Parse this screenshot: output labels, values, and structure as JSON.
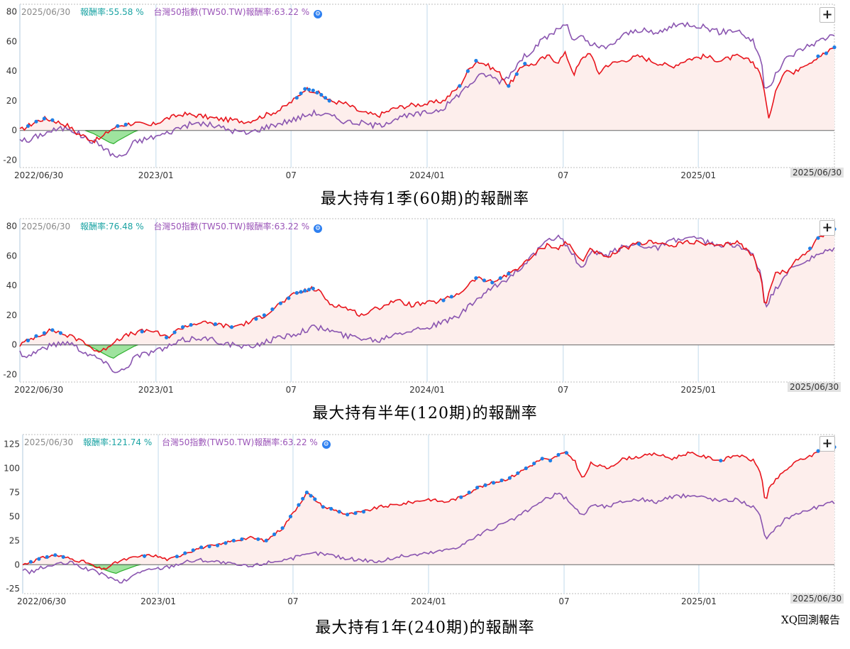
{
  "colors": {
    "strategy_line": "#e8141c",
    "benchmark_line": "#8a55b0",
    "new_high_dots": "#1f7fe6",
    "drawdown_fill": "#9ee39e",
    "drawdown_line": "#2db02d",
    "area_fill": "#fdeeec",
    "grid_vertical": "#d6e6f2",
    "zero_line": "#666666"
  },
  "icons": {
    "settings": "gear-dot-icon",
    "zoom": "plus-icon"
  },
  "watermark": "XQ回測報告",
  "chart_data": [
    {
      "type": "line",
      "header": {
        "date": "2025/06/30",
        "strategy_label": "報酬率:",
        "strategy_value": "55.58 %",
        "benchmark_label": "台灣50指數(TW50.TW)報酬率:",
        "benchmark_value": "63.22 %"
      },
      "caption": "最大持有1季(60期)的報酬率",
      "zoom_label": "+",
      "end_date": "2025/06/30",
      "ylim": [
        -25,
        85
      ],
      "yticks": [
        -20,
        0,
        20,
        40,
        60,
        80
      ],
      "x_tick_labels": [
        "2022/06/30",
        "2023/01",
        "07",
        "2024/01",
        "07",
        "2025/01"
      ],
      "x_tick_pos": [
        0,
        0.167,
        0.333,
        0.5,
        0.667,
        0.833
      ],
      "series": [
        {
          "role": "strategy",
          "x": [
            0,
            0.01,
            0.02,
            0.03,
            0.04,
            0.05,
            0.06,
            0.07,
            0.08,
            0.09,
            0.1,
            0.11,
            0.12,
            0.13,
            0.14,
            0.16,
            0.18,
            0.2,
            0.22,
            0.24,
            0.26,
            0.28,
            0.3,
            0.32,
            0.33,
            0.34,
            0.35,
            0.36,
            0.37,
            0.38,
            0.4,
            0.42,
            0.44,
            0.46,
            0.48,
            0.5,
            0.52,
            0.53,
            0.54,
            0.55,
            0.56,
            0.57,
            0.58,
            0.59,
            0.6,
            0.61,
            0.62,
            0.63,
            0.64,
            0.65,
            0.66,
            0.67,
            0.68,
            0.69,
            0.7,
            0.71,
            0.72,
            0.74,
            0.76,
            0.78,
            0.8,
            0.82,
            0.84,
            0.86,
            0.88,
            0.9,
            0.91,
            0.915,
            0.92,
            0.93,
            0.94,
            0.95,
            0.96,
            0.97,
            0.98,
            0.99,
            1
          ],
          "values": [
            0,
            3,
            6,
            8,
            7,
            5,
            3,
            -2,
            -4,
            -7,
            -5,
            0,
            3,
            4,
            5,
            3,
            8,
            11,
            10,
            8,
            7,
            6,
            10,
            14,
            18,
            22,
            28,
            27,
            24,
            20,
            18,
            12,
            10,
            15,
            17,
            18,
            20,
            25,
            30,
            40,
            47,
            45,
            42,
            38,
            30,
            38,
            45,
            44,
            48,
            50,
            46,
            52,
            38,
            48,
            53,
            38,
            44,
            47,
            50,
            46,
            43,
            48,
            50,
            47,
            50,
            46,
            38,
            22,
            8,
            30,
            42,
            38,
            44,
            46,
            50,
            52,
            56
          ]
        },
        {
          "role": "benchmark",
          "x": [
            0,
            0.01,
            0.02,
            0.04,
            0.06,
            0.08,
            0.1,
            0.11,
            0.12,
            0.13,
            0.14,
            0.16,
            0.18,
            0.2,
            0.22,
            0.24,
            0.26,
            0.28,
            0.3,
            0.32,
            0.34,
            0.36,
            0.38,
            0.4,
            0.42,
            0.44,
            0.46,
            0.48,
            0.5,
            0.52,
            0.53,
            0.54,
            0.55,
            0.56,
            0.57,
            0.58,
            0.59,
            0.6,
            0.61,
            0.62,
            0.63,
            0.64,
            0.65,
            0.66,
            0.67,
            0.68,
            0.69,
            0.7,
            0.72,
            0.74,
            0.76,
            0.78,
            0.8,
            0.82,
            0.84,
            0.86,
            0.88,
            0.9,
            0.91,
            0.915,
            0.92,
            0.94,
            0.96,
            0.98,
            1
          ],
          "values": [
            -5,
            -8,
            -4,
            0,
            2,
            -5,
            -10,
            -15,
            -18,
            -16,
            -8,
            -5,
            -2,
            3,
            5,
            3,
            0,
            -2,
            2,
            5,
            8,
            12,
            10,
            6,
            5,
            3,
            8,
            10,
            12,
            15,
            20,
            25,
            30,
            35,
            38,
            36,
            33,
            37,
            44,
            50,
            55,
            60,
            64,
            68,
            72,
            60,
            63,
            58,
            55,
            64,
            68,
            65,
            70,
            72,
            70,
            66,
            68,
            60,
            48,
            25,
            30,
            48,
            55,
            60,
            65
          ]
        }
      ],
      "drawdown": {
        "x": [
          0.08,
          0.09,
          0.1,
          0.11,
          0.115,
          0.12,
          0.13,
          0.14,
          0.145
        ],
        "values": [
          0,
          -2,
          -5,
          -8,
          -9,
          -7,
          -4,
          -1,
          0
        ]
      },
      "new_high_x": [
        0.01,
        0.02,
        0.03,
        0.04,
        0.12,
        0.13,
        0.34,
        0.345,
        0.35,
        0.355,
        0.36,
        0.365,
        0.37,
        0.375,
        0.38,
        0.54,
        0.55,
        0.56,
        0.6,
        0.61,
        0.62,
        0.98,
        0.99,
        1
      ]
    },
    {
      "type": "line",
      "header": {
        "date": "2025/06/30",
        "strategy_label": "報酬率:",
        "strategy_value": "76.48 %",
        "benchmark_label": "台灣50指數(TW50.TW)報酬率:",
        "benchmark_value": "63.22 %"
      },
      "caption": "最大持有半年(120期)的報酬率",
      "zoom_label": "+",
      "end_date": "2025/06/30",
      "ylim": [
        -25,
        85
      ],
      "yticks": [
        -20,
        0,
        20,
        40,
        60,
        80
      ],
      "x_tick_labels": [
        "2022/06/30",
        "2023/01",
        "07",
        "2024/01",
        "07",
        "2025/01"
      ],
      "x_tick_pos": [
        0,
        0.167,
        0.333,
        0.5,
        0.667,
        0.833
      ],
      "series": [
        {
          "role": "strategy",
          "x": [
            0,
            0.01,
            0.02,
            0.03,
            0.04,
            0.05,
            0.06,
            0.08,
            0.09,
            0.1,
            0.11,
            0.12,
            0.13,
            0.14,
            0.16,
            0.18,
            0.2,
            0.22,
            0.24,
            0.26,
            0.28,
            0.3,
            0.32,
            0.34,
            0.36,
            0.37,
            0.38,
            0.4,
            0.42,
            0.44,
            0.46,
            0.48,
            0.5,
            0.52,
            0.54,
            0.56,
            0.58,
            0.6,
            0.62,
            0.63,
            0.64,
            0.65,
            0.66,
            0.67,
            0.68,
            0.69,
            0.7,
            0.72,
            0.74,
            0.76,
            0.78,
            0.8,
            0.82,
            0.84,
            0.86,
            0.88,
            0.9,
            0.91,
            0.915,
            0.92,
            0.93,
            0.94,
            0.95,
            0.96,
            0.97,
            0.98,
            0.99,
            1
          ],
          "values": [
            0,
            3,
            6,
            8,
            10,
            8,
            6,
            2,
            -3,
            -5,
            0,
            4,
            6,
            8,
            10,
            5,
            12,
            15,
            14,
            12,
            15,
            20,
            28,
            35,
            38,
            35,
            28,
            25,
            20,
            25,
            30,
            27,
            28,
            30,
            35,
            45,
            42,
            48,
            55,
            60,
            65,
            68,
            64,
            70,
            63,
            56,
            65,
            58,
            65,
            68,
            70,
            66,
            70,
            68,
            66,
            70,
            60,
            45,
            25,
            38,
            50,
            48,
            55,
            60,
            65,
            72,
            76,
            78
          ]
        },
        {
          "role": "benchmark",
          "x": [
            0,
            0.01,
            0.02,
            0.04,
            0.06,
            0.08,
            0.1,
            0.11,
            0.12,
            0.13,
            0.14,
            0.16,
            0.18,
            0.2,
            0.22,
            0.24,
            0.26,
            0.28,
            0.3,
            0.32,
            0.34,
            0.36,
            0.38,
            0.4,
            0.42,
            0.44,
            0.46,
            0.48,
            0.5,
            0.52,
            0.54,
            0.56,
            0.58,
            0.6,
            0.62,
            0.63,
            0.64,
            0.65,
            0.66,
            0.67,
            0.68,
            0.69,
            0.7,
            0.72,
            0.74,
            0.76,
            0.78,
            0.8,
            0.82,
            0.84,
            0.86,
            0.88,
            0.9,
            0.91,
            0.915,
            0.92,
            0.94,
            0.96,
            0.98,
            1
          ],
          "values": [
            -5,
            -8,
            -4,
            0,
            2,
            -5,
            -10,
            -15,
            -18,
            -16,
            -8,
            -5,
            -2,
            3,
            5,
            3,
            0,
            -2,
            2,
            5,
            8,
            12,
            10,
            6,
            5,
            3,
            8,
            10,
            12,
            15,
            20,
            30,
            38,
            45,
            55,
            60,
            66,
            70,
            74,
            68,
            60,
            50,
            62,
            60,
            66,
            68,
            65,
            70,
            72,
            70,
            66,
            68,
            60,
            48,
            25,
            30,
            48,
            55,
            60,
            65
          ]
        }
      ],
      "drawdown": {
        "x": [
          0.08,
          0.09,
          0.1,
          0.11,
          0.115,
          0.12,
          0.13,
          0.14,
          0.145
        ],
        "values": [
          0,
          -2,
          -5,
          -8,
          -9,
          -7,
          -4,
          -1,
          0
        ]
      },
      "new_high_x": [
        0.01,
        0.02,
        0.03,
        0.04,
        0.05,
        0.15,
        0.18,
        0.19,
        0.2,
        0.21,
        0.24,
        0.26,
        0.29,
        0.3,
        0.31,
        0.32,
        0.33,
        0.34,
        0.345,
        0.35,
        0.355,
        0.36,
        0.52,
        0.53,
        0.56,
        0.57,
        0.58,
        0.59,
        0.6,
        0.76,
        0.97,
        0.98,
        1
      ]
    },
    {
      "type": "line",
      "header": {
        "date": "2025/06/30",
        "strategy_label": "報酬率:",
        "strategy_value": "121.74 %",
        "benchmark_label": "台灣50指數(TW50.TW)報酬率:",
        "benchmark_value": "63.22 %"
      },
      "caption": "最大持有1年(240期)的報酬率",
      "zoom_label": "+",
      "end_date": "2025/06/30",
      "ylim": [
        -30,
        135
      ],
      "yticks": [
        -25,
        0,
        25,
        50,
        75,
        100,
        125
      ],
      "x_tick_labels": [
        "2022/06/30",
        "2023/01",
        "07",
        "2024/01",
        "07",
        "2025/01"
      ],
      "x_tick_pos": [
        0,
        0.167,
        0.333,
        0.5,
        0.667,
        0.833
      ],
      "series": [
        {
          "role": "strategy",
          "x": [
            0,
            0.01,
            0.02,
            0.03,
            0.04,
            0.05,
            0.06,
            0.08,
            0.09,
            0.1,
            0.11,
            0.12,
            0.13,
            0.14,
            0.16,
            0.18,
            0.2,
            0.22,
            0.24,
            0.26,
            0.28,
            0.3,
            0.32,
            0.33,
            0.34,
            0.35,
            0.36,
            0.37,
            0.38,
            0.4,
            0.42,
            0.44,
            0.46,
            0.48,
            0.5,
            0.52,
            0.54,
            0.56,
            0.58,
            0.6,
            0.62,
            0.63,
            0.64,
            0.65,
            0.66,
            0.67,
            0.68,
            0.69,
            0.7,
            0.72,
            0.74,
            0.76,
            0.78,
            0.8,
            0.82,
            0.84,
            0.86,
            0.88,
            0.9,
            0.91,
            0.915,
            0.92,
            0.93,
            0.94,
            0.95,
            0.96,
            0.97,
            0.98,
            0.99,
            1
          ],
          "values": [
            0,
            3,
            6,
            8,
            10,
            8,
            6,
            2,
            -3,
            -5,
            0,
            4,
            6,
            8,
            10,
            5,
            12,
            18,
            20,
            25,
            28,
            25,
            38,
            50,
            62,
            75,
            68,
            60,
            58,
            52,
            55,
            60,
            62,
            65,
            68,
            65,
            70,
            80,
            85,
            90,
            100,
            105,
            110,
            108,
            114,
            116,
            108,
            88,
            105,
            100,
            110,
            112,
            115,
            110,
            116,
            112,
            108,
            114,
            108,
            95,
            62,
            80,
            90,
            98,
            105,
            110,
            112,
            118,
            120,
            122
          ]
        },
        {
          "role": "benchmark",
          "x": [
            0,
            0.01,
            0.02,
            0.04,
            0.06,
            0.08,
            0.1,
            0.11,
            0.12,
            0.13,
            0.14,
            0.16,
            0.18,
            0.2,
            0.22,
            0.24,
            0.26,
            0.28,
            0.3,
            0.32,
            0.34,
            0.36,
            0.38,
            0.4,
            0.42,
            0.44,
            0.46,
            0.48,
            0.5,
            0.52,
            0.54,
            0.56,
            0.58,
            0.6,
            0.62,
            0.63,
            0.64,
            0.65,
            0.66,
            0.67,
            0.68,
            0.69,
            0.7,
            0.72,
            0.74,
            0.76,
            0.78,
            0.8,
            0.82,
            0.84,
            0.86,
            0.88,
            0.9,
            0.91,
            0.915,
            0.92,
            0.94,
            0.96,
            0.98,
            1
          ],
          "values": [
            -5,
            -8,
            -4,
            0,
            2,
            -5,
            -10,
            -15,
            -18,
            -16,
            -8,
            -5,
            -2,
            3,
            5,
            3,
            0,
            -2,
            2,
            5,
            8,
            12,
            10,
            6,
            5,
            3,
            8,
            10,
            12,
            15,
            20,
            30,
            38,
            45,
            55,
            60,
            66,
            70,
            74,
            68,
            60,
            50,
            62,
            60,
            66,
            68,
            65,
            70,
            72,
            70,
            66,
            68,
            60,
            48,
            25,
            30,
            48,
            55,
            60,
            65
          ]
        }
      ],
      "drawdown": {
        "x": [
          0.08,
          0.09,
          0.1,
          0.11,
          0.115,
          0.12,
          0.13,
          0.14,
          0.145
        ],
        "values": [
          0,
          -2,
          -5,
          -8,
          -9,
          -7,
          -4,
          -1,
          0
        ]
      },
      "new_high_x": [
        0.01,
        0.02,
        0.03,
        0.04,
        0.05,
        0.15,
        0.19,
        0.2,
        0.21,
        0.22,
        0.23,
        0.24,
        0.25,
        0.26,
        0.27,
        0.29,
        0.3,
        0.31,
        0.32,
        0.33,
        0.34,
        0.345,
        0.35,
        0.355,
        0.36,
        0.37,
        0.38,
        0.39,
        0.4,
        0.41,
        0.42,
        0.54,
        0.55,
        0.56,
        0.57,
        0.58,
        0.59,
        0.6,
        0.61,
        0.62,
        0.63,
        0.64,
        0.65,
        0.66,
        0.67,
        0.86,
        0.98,
        0.99,
        1
      ]
    }
  ]
}
